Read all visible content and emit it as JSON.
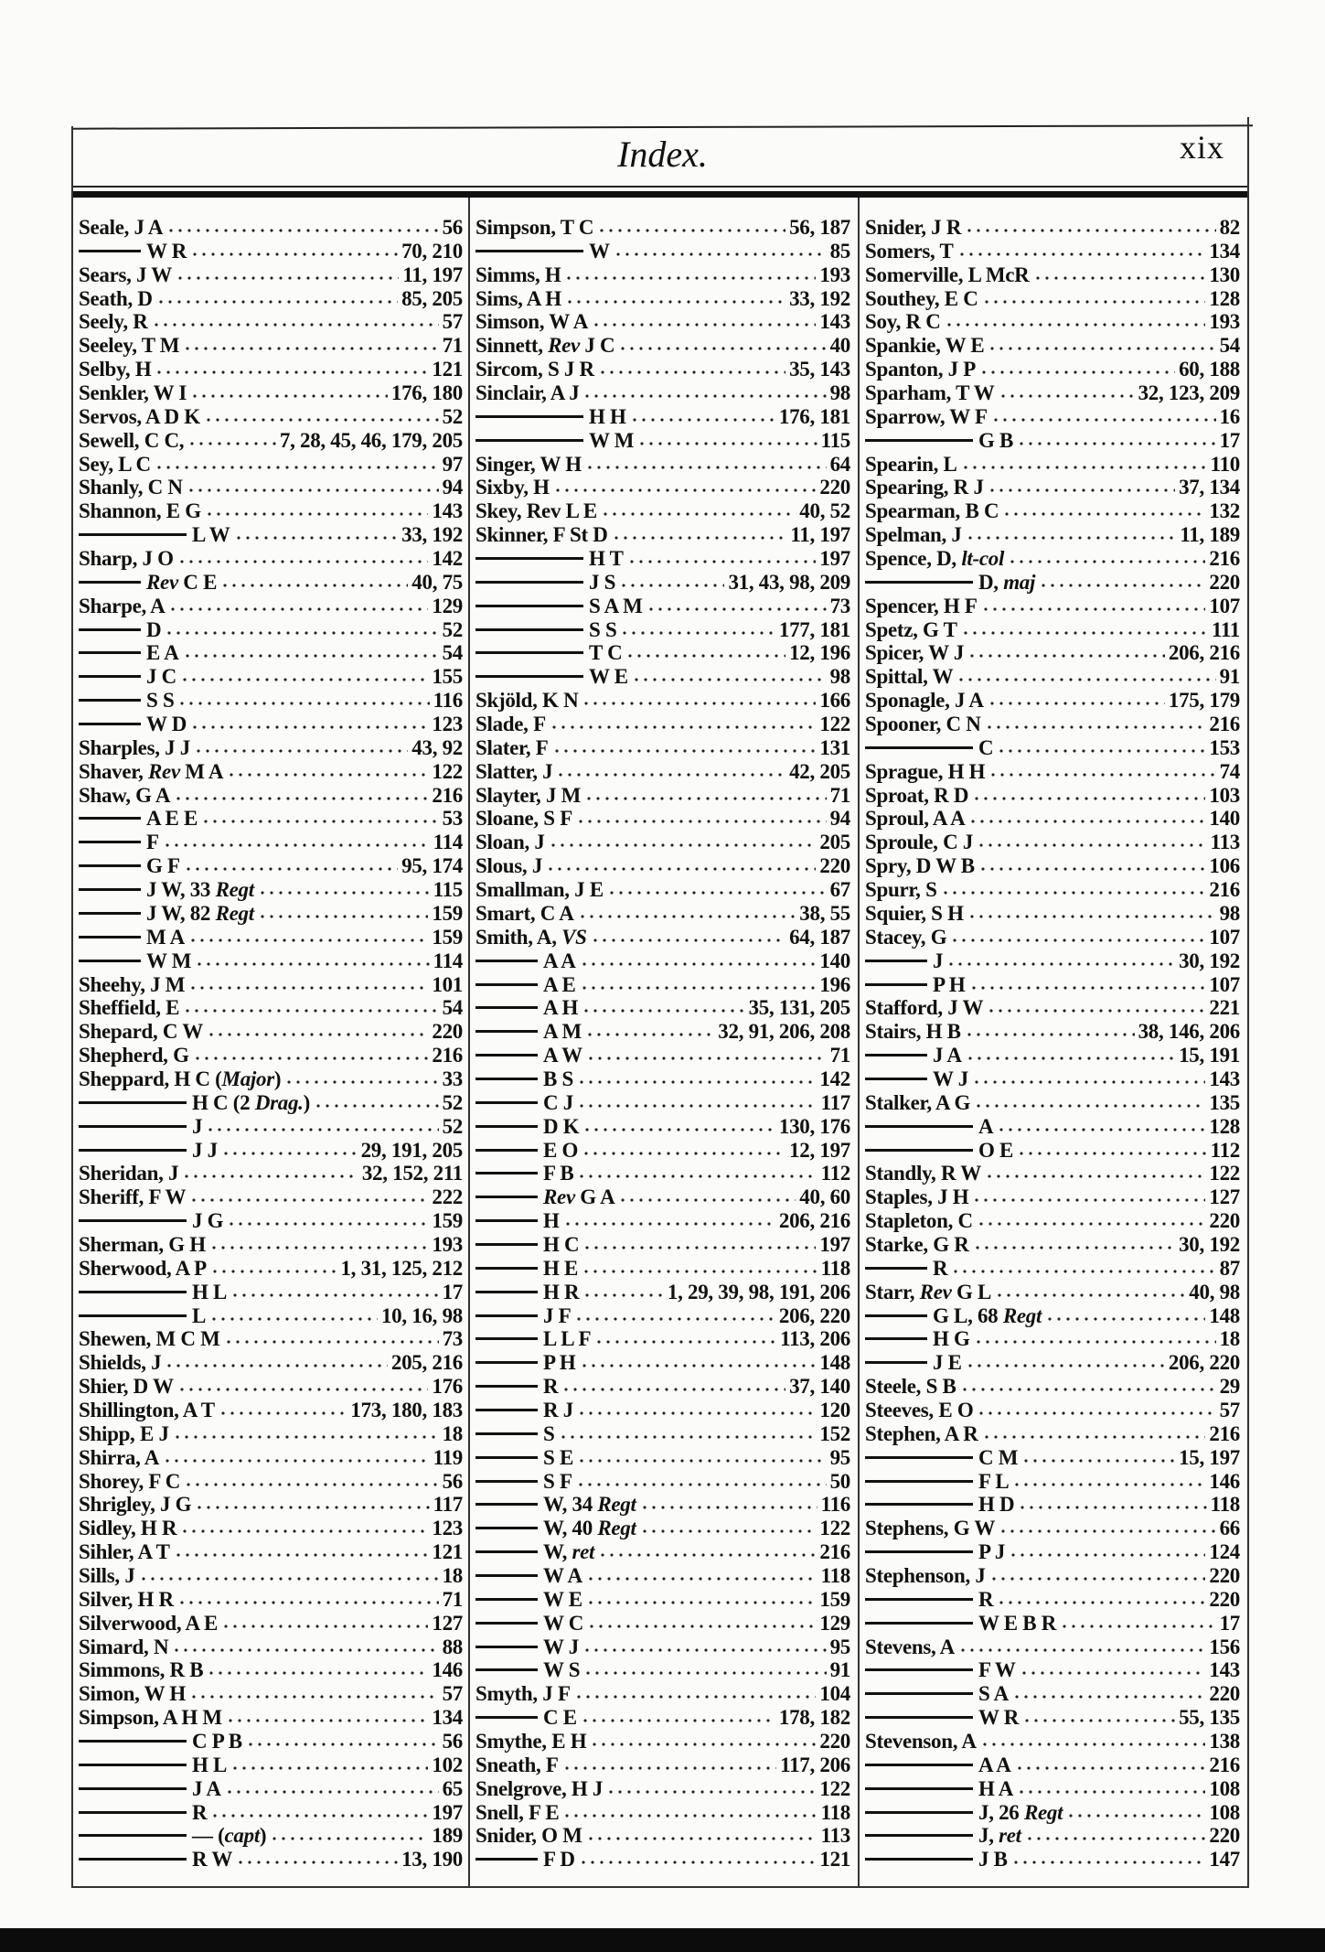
{
  "header": {
    "title": "Index.",
    "folio": "xix"
  },
  "columns": [
    {
      "entries": [
        {
          "name": "Seale, J A",
          "pages": "56"
        },
        {
          "dash": 1,
          "name": "W R",
          "pages": "70, 210"
        },
        {
          "name": "Sears, J W",
          "pages": "11, 197"
        },
        {
          "name": "Seath, D",
          "pages": "85, 205"
        },
        {
          "name": "Seely, R",
          "pages": "57"
        },
        {
          "name": "Seeley, T M",
          "pages": "71"
        },
        {
          "name": "Selby, H",
          "pages": "121"
        },
        {
          "name": "Senkler, W I",
          "pages": "176, 180"
        },
        {
          "name": "Servos, A D K",
          "pages": "52"
        },
        {
          "name": "Sewell, C C,",
          "pages": "7, 28, 45, 46, 179, 205"
        },
        {
          "name": "Sey, L C",
          "pages": "97"
        },
        {
          "name": "Shanly, C N",
          "pages": "94"
        },
        {
          "name": "Shannon, E G",
          "pages": "143"
        },
        {
          "dash": 2,
          "name": "L W",
          "pages": "33, 192"
        },
        {
          "name": "Sharp, J O",
          "pages": "142"
        },
        {
          "dash": 1,
          "name": "Rev C E",
          "italic": "Rev",
          "pages": "40, 75"
        },
        {
          "name": "Sharpe, A",
          "pages": "129"
        },
        {
          "dash": 1,
          "name": "D",
          "pages": "52"
        },
        {
          "dash": 1,
          "name": "E A",
          "pages": "54"
        },
        {
          "dash": 1,
          "name": "J C",
          "pages": "155"
        },
        {
          "dash": 1,
          "name": "S S",
          "pages": "116"
        },
        {
          "dash": 1,
          "name": "W D",
          "pages": "123"
        },
        {
          "name": "Sharples, J J",
          "pages": "43, 92"
        },
        {
          "name": "Shaver, Rev M A",
          "italic": "Rev",
          "pages": "122"
        },
        {
          "name": "Shaw, G A",
          "pages": "216"
        },
        {
          "dash": 1,
          "name": "A E E",
          "pages": "53"
        },
        {
          "dash": 1,
          "name": "F",
          "pages": "114"
        },
        {
          "dash": 1,
          "name": "G F",
          "pages": "95, 174"
        },
        {
          "dash": 1,
          "name": "J W, 33 Regt",
          "italic": "Regt",
          "pages": "115"
        },
        {
          "dash": 1,
          "name": "J W, 82 Regt",
          "italic": "Regt",
          "pages": "159"
        },
        {
          "dash": 1,
          "name": "M A",
          "pages": "159"
        },
        {
          "dash": 1,
          "name": "W M",
          "pages": "114"
        },
        {
          "name": "Sheehy, J M",
          "pages": "101"
        },
        {
          "name": "Sheffield, E",
          "pages": "54"
        },
        {
          "name": "Shepard, C W",
          "pages": "220"
        },
        {
          "name": "Shepherd, G",
          "pages": "216"
        },
        {
          "name": "Sheppard, H C (Major)",
          "italic": "Major",
          "pages": "33"
        },
        {
          "dash": 2,
          "name": "H C (2 Drag.)",
          "italic": "Drag.",
          "pages": "52"
        },
        {
          "dash": 2,
          "name": "J",
          "pages": "52"
        },
        {
          "dash": 2,
          "name": "J J",
          "pages": "29, 191, 205"
        },
        {
          "name": "Sheridan, J",
          "pages": "32, 152, 211"
        },
        {
          "name": "Sheriff, F W",
          "pages": "222"
        },
        {
          "dash": 2,
          "name": "J G",
          "pages": "159"
        },
        {
          "name": "Sherman, G H",
          "pages": "193"
        },
        {
          "name": "Sherwood, A P",
          "pages": "1, 31, 125, 212"
        },
        {
          "dash": 2,
          "name": "H L",
          "pages": "17"
        },
        {
          "dash": 2,
          "name": "L",
          "pages": "10, 16, 98"
        },
        {
          "name": "Shewen, M C M",
          "pages": "73"
        },
        {
          "name": "Shields, J",
          "pages": "205, 216"
        },
        {
          "name": "Shier, D W",
          "pages": "176"
        },
        {
          "name": "Shillington, A T",
          "pages": "173, 180, 183"
        },
        {
          "name": "Shipp, E J",
          "pages": "18"
        },
        {
          "name": "Shirra, A",
          "pages": "119"
        },
        {
          "name": "Shorey, F C",
          "pages": "56"
        },
        {
          "name": "Shrigley, J G",
          "pages": "117"
        },
        {
          "name": "Sidley, H R",
          "pages": "123"
        },
        {
          "name": "Sihler, A T",
          "pages": "121"
        },
        {
          "name": "Sills, J",
          "pages": "18"
        },
        {
          "name": "Silver, H R",
          "pages": "71"
        },
        {
          "name": "Silverwood, A E",
          "pages": "127"
        },
        {
          "name": "Simard, N",
          "pages": "88"
        },
        {
          "name": "Simmons, R B",
          "pages": "146"
        },
        {
          "name": "Simon, W H",
          "pages": "57"
        },
        {
          "name": "Simpson, A H M",
          "pages": "134"
        },
        {
          "dash": 2,
          "name": "C P B",
          "pages": "56"
        },
        {
          "dash": 2,
          "name": "H L",
          "pages": "102"
        },
        {
          "dash": 2,
          "name": "J A",
          "pages": "65"
        },
        {
          "dash": 2,
          "name": "R",
          "pages": "197"
        },
        {
          "dash": 2,
          "name": "— (capt)",
          "italic": "capt",
          "pages": "189"
        },
        {
          "dash": 2,
          "name": "R W",
          "pages": "13, 190"
        }
      ]
    },
    {
      "entries": [
        {
          "name": "Simpson, T C",
          "pages": "56, 187"
        },
        {
          "dash": 2,
          "name": "W",
          "pages": "85"
        },
        {
          "name": "Simms, H",
          "pages": "193"
        },
        {
          "name": "Sims, A H",
          "pages": "33, 192"
        },
        {
          "name": "Simson, W A",
          "pages": "143"
        },
        {
          "name": "Sinnett, Rev J C",
          "italic": "Rev",
          "pages": "40"
        },
        {
          "name": "Sircom, S J R",
          "pages": "35, 143"
        },
        {
          "name": "Sinclair, A J",
          "pages": "98"
        },
        {
          "dash": 2,
          "name": "H H",
          "pages": "176, 181"
        },
        {
          "dash": 2,
          "name": "W M",
          "pages": "115"
        },
        {
          "name": "Singer, W H",
          "pages": "64"
        },
        {
          "name": "Sixby, H",
          "pages": "220"
        },
        {
          "name": "Skey, Rev L E",
          "pages": "40, 52"
        },
        {
          "name": "Skinner, F St D",
          "pages": "11, 197"
        },
        {
          "dash": 2,
          "name": "H T",
          "pages": "197"
        },
        {
          "dash": 2,
          "name": "J S",
          "pages": "31, 43, 98, 209"
        },
        {
          "dash": 2,
          "name": "S A M",
          "pages": "73"
        },
        {
          "dash": 2,
          "name": "S S",
          "pages": "177, 181"
        },
        {
          "dash": 2,
          "name": "T C",
          "pages": "12, 196"
        },
        {
          "dash": 2,
          "name": "W E",
          "pages": "98"
        },
        {
          "name": "Skjöld, K N",
          "pages": "166"
        },
        {
          "name": "Slade, F",
          "pages": "122"
        },
        {
          "name": "Slater, F",
          "pages": "131"
        },
        {
          "name": "Slatter, J",
          "pages": "42, 205"
        },
        {
          "name": "Slayter, J M",
          "pages": "71"
        },
        {
          "name": "Sloane, S F",
          "pages": "94"
        },
        {
          "name": "Sloan, J",
          "pages": "205"
        },
        {
          "name": "Slous, J",
          "pages": "220"
        },
        {
          "name": "Smallman, J E",
          "pages": "67"
        },
        {
          "name": "Smart, C A",
          "pages": "38, 55"
        },
        {
          "name": "Smith, A, VS",
          "italic": "VS",
          "pages": "64, 187"
        },
        {
          "dash": 1,
          "name": "A A",
          "pages": "140"
        },
        {
          "dash": 1,
          "name": "A E",
          "pages": "196"
        },
        {
          "dash": 1,
          "name": "A H",
          "pages": "35, 131, 205"
        },
        {
          "dash": 1,
          "name": "A M",
          "pages": "32, 91, 206, 208"
        },
        {
          "dash": 1,
          "name": "A W",
          "pages": "71"
        },
        {
          "dash": 1,
          "name": "B S",
          "pages": "142"
        },
        {
          "dash": 1,
          "name": "C J",
          "pages": "117"
        },
        {
          "dash": 1,
          "name": "D K",
          "pages": "130, 176"
        },
        {
          "dash": 1,
          "name": "E O",
          "pages": "12, 197"
        },
        {
          "dash": 1,
          "name": "F B",
          "pages": "112"
        },
        {
          "dash": 1,
          "name": "Rev G A",
          "italic": "Rev",
          "pages": "40, 60"
        },
        {
          "dash": 1,
          "name": "H",
          "pages": "206, 216"
        },
        {
          "dash": 1,
          "name": "H C",
          "pages": "197"
        },
        {
          "dash": 1,
          "name": "H E",
          "pages": "118"
        },
        {
          "dash": 1,
          "name": "H R",
          "pages": "1, 29, 39, 98, 191, 206"
        },
        {
          "dash": 1,
          "name": "J F",
          "pages": "206, 220"
        },
        {
          "dash": 1,
          "name": "L L F",
          "pages": "113, 206"
        },
        {
          "dash": 1,
          "name": "P H",
          "pages": "148"
        },
        {
          "dash": 1,
          "name": "R",
          "pages": "37, 140"
        },
        {
          "dash": 1,
          "name": "R J",
          "pages": "120"
        },
        {
          "dash": 1,
          "name": "S",
          "pages": "152"
        },
        {
          "dash": 1,
          "name": "S E",
          "pages": "95"
        },
        {
          "dash": 1,
          "name": "S F",
          "pages": "50"
        },
        {
          "dash": 1,
          "name": "W, 34 Regt",
          "italic": "Regt",
          "pages": "116"
        },
        {
          "dash": 1,
          "name": "W, 40 Regt",
          "italic": "Regt",
          "pages": "122"
        },
        {
          "dash": 1,
          "name": "W, ret",
          "italic": "ret",
          "pages": "216"
        },
        {
          "dash": 1,
          "name": "W A",
          "pages": "118"
        },
        {
          "dash": 1,
          "name": "W E",
          "pages": "159"
        },
        {
          "dash": 1,
          "name": "W C",
          "pages": "129"
        },
        {
          "dash": 1,
          "name": "W J",
          "pages": "95"
        },
        {
          "dash": 1,
          "name": "W S",
          "pages": "91"
        },
        {
          "name": "Smyth, J F",
          "pages": "104"
        },
        {
          "dash": 1,
          "name": "C E",
          "pages": "178, 182"
        },
        {
          "name": "Smythe, E H",
          "pages": "220"
        },
        {
          "name": "Sneath, F",
          "pages": "117, 206"
        },
        {
          "name": "Snelgrove, H J",
          "pages": "122"
        },
        {
          "name": "Snell, F E",
          "pages": "118"
        },
        {
          "name": "Snider, O M",
          "pages": "113"
        },
        {
          "dash": 1,
          "name": "F D",
          "pages": "121"
        }
      ]
    },
    {
      "entries": [
        {
          "name": "Snider, J R",
          "pages": "82"
        },
        {
          "name": "Somers, T",
          "pages": "134"
        },
        {
          "name": "Somerville, L McR",
          "pages": "130"
        },
        {
          "name": "Southey, E C",
          "pages": "128"
        },
        {
          "name": "Soy, R C",
          "pages": "193"
        },
        {
          "name": "Spankie, W E",
          "pages": "54"
        },
        {
          "name": "Spanton, J P",
          "pages": "60, 188"
        },
        {
          "name": "Sparham, T W",
          "pages": "32, 123, 209"
        },
        {
          "name": "Sparrow, W F",
          "pages": "16"
        },
        {
          "dash": 2,
          "name": "G B",
          "pages": "17"
        },
        {
          "name": "Spearin, L",
          "pages": "110"
        },
        {
          "name": "Spearing, R J",
          "pages": "37, 134"
        },
        {
          "name": "Spearman, B C",
          "pages": "132"
        },
        {
          "name": "Spelman, J",
          "pages": "11, 189"
        },
        {
          "name": "Spence, D, lt-col",
          "italic": "lt-col",
          "pages": "216"
        },
        {
          "dash": 2,
          "name": "D, maj",
          "italic": "maj",
          "pages": "220"
        },
        {
          "name": "Spencer, H F",
          "pages": "107"
        },
        {
          "name": "Spetz, G T",
          "pages": "111"
        },
        {
          "name": "Spicer, W J",
          "pages": "206, 216"
        },
        {
          "name": "Spittal, W",
          "pages": "91"
        },
        {
          "name": "Sponagle, J A",
          "pages": "175, 179"
        },
        {
          "name": "Spooner, C N",
          "pages": "216"
        },
        {
          "dash": 2,
          "name": "C",
          "pages": "153"
        },
        {
          "name": "Sprague, H H",
          "pages": "74"
        },
        {
          "name": "Sproat, R D",
          "pages": "103"
        },
        {
          "name": "Sproul, A A",
          "pages": "140"
        },
        {
          "name": "Sproule, C J",
          "pages": "113"
        },
        {
          "name": "Spry, D W B",
          "pages": "106"
        },
        {
          "name": "Spurr, S",
          "pages": "216"
        },
        {
          "name": "Squier, S H",
          "pages": "98"
        },
        {
          "name": "Stacey, G",
          "pages": "107"
        },
        {
          "dash": 1,
          "name": "J",
          "pages": "30, 192"
        },
        {
          "dash": 1,
          "name": "P H",
          "pages": "107"
        },
        {
          "name": "Stafford, J W",
          "pages": "221"
        },
        {
          "name": "Stairs, H B",
          "pages": "38, 146, 206"
        },
        {
          "dash": 1,
          "name": "J A",
          "pages": "15, 191"
        },
        {
          "dash": 1,
          "name": "W J",
          "pages": "143"
        },
        {
          "name": "Stalker, A G",
          "pages": "135"
        },
        {
          "dash": 2,
          "name": "A",
          "pages": "128"
        },
        {
          "dash": 2,
          "name": "O E",
          "pages": "112"
        },
        {
          "name": "Standly, R W",
          "pages": "122"
        },
        {
          "name": "Staples, J H",
          "pages": "127"
        },
        {
          "name": "Stapleton, C",
          "pages": "220"
        },
        {
          "name": "Starke, G R",
          "pages": "30, 192"
        },
        {
          "dash": 1,
          "name": "R",
          "pages": "87"
        },
        {
          "name": "Starr, Rev G L",
          "italic": "Rev",
          "pages": "40, 98"
        },
        {
          "dash": 1,
          "name": "G L, 68 Regt",
          "italic": "Regt",
          "pages": "148"
        },
        {
          "dash": 1,
          "name": "H G",
          "pages": "18"
        },
        {
          "dash": 1,
          "name": "J E",
          "pages": "206, 220"
        },
        {
          "name": "Steele, S B",
          "pages": "29"
        },
        {
          "name": "Steeves, E O",
          "pages": "57"
        },
        {
          "name": "Stephen, A R",
          "pages": "216"
        },
        {
          "dash": 2,
          "name": "C M",
          "pages": "15, 197"
        },
        {
          "dash": 2,
          "name": "F L",
          "pages": "146"
        },
        {
          "dash": 2,
          "name": "H D",
          "pages": "118"
        },
        {
          "name": "Stephens, G W",
          "pages": "66"
        },
        {
          "dash": 2,
          "name": "P J",
          "pages": "124"
        },
        {
          "name": "Stephenson, J",
          "pages": "220"
        },
        {
          "dash": 2,
          "name": "R",
          "pages": "220"
        },
        {
          "dash": 2,
          "name": "W E B R",
          "pages": "17"
        },
        {
          "name": "Stevens, A",
          "pages": "156"
        },
        {
          "dash": 2,
          "name": "F W",
          "pages": "143"
        },
        {
          "dash": 2,
          "name": "S A",
          "pages": "220"
        },
        {
          "dash": 2,
          "name": "W R",
          "pages": "55, 135"
        },
        {
          "name": "Stevenson, A",
          "pages": "138"
        },
        {
          "dash": 2,
          "name": "A A",
          "pages": "216"
        },
        {
          "dash": 2,
          "name": "H A",
          "pages": "108"
        },
        {
          "dash": 2,
          "name": "J, 26 Regt",
          "italic": "Regt",
          "pages": "108"
        },
        {
          "dash": 2,
          "name": "J, ret",
          "italic": "ret",
          "pages": "220"
        },
        {
          "dash": 2,
          "name": "J B",
          "pages": "147"
        }
      ]
    }
  ]
}
